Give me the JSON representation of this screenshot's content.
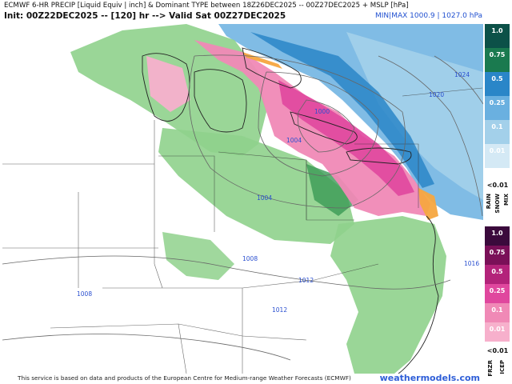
{
  "header": {
    "title_line1": "ECMWF 6-HR PRECIP [Liquid Equiv | inch] & Dominant TYPE between 18Z26DEC2025 -- 00Z27DEC2025 + MSLP [hPa]",
    "title_line2": "Init: 00Z22DEC2025 -- [120] hr --> Valid Sat 00Z27DEC2025",
    "minmax": "MIN|MAX 1000.9 | 1027.0 hPa"
  },
  "isobars": [
    "1000",
    "1004",
    "1004",
    "1008",
    "1008",
    "1012",
    "1012",
    "1016",
    "1020",
    "1024"
  ],
  "footer": {
    "note": "This service is based on data and products of the European Centre for Medium-range Weather Forecasts (ECMWF)",
    "brand": "weathermodels.com"
  },
  "legend": {
    "snow": {
      "levels": [
        "1.0",
        "0.75",
        "0.5",
        "0.25",
        "0.1",
        "0.01"
      ],
      "colors": [
        "#0c5148",
        "#1a7a4f",
        "#2a86c8",
        "#6ab0e0",
        "#a3d0ea",
        "#d4e9f5"
      ],
      "label_colors": [
        "#ffffff",
        "#ffffff",
        "#ffffff",
        "#ffffff",
        "#ffffff",
        "#ffffff"
      ]
    },
    "less_label_top": "<0.01",
    "type_labels_top": [
      "RAIN",
      "SNOW",
      "MIX"
    ],
    "mix": {
      "levels": [
        "1.0",
        "0.75",
        "0.5",
        "0.25",
        "0.1",
        "0.01"
      ],
      "colors": [
        "#3b0a3c",
        "#7a1058",
        "#b3237a",
        "#e0479e",
        "#f089b6",
        "#f7b0cc"
      ],
      "label_colors": [
        "#ffffff",
        "#ffffff",
        "#ffffff",
        "#ffffff",
        "#ffffff",
        "#ffffff"
      ]
    },
    "less_label_bottom": "<0.01",
    "type_labels_bottom": [
      "FRZR",
      "ICEP"
    ]
  }
}
